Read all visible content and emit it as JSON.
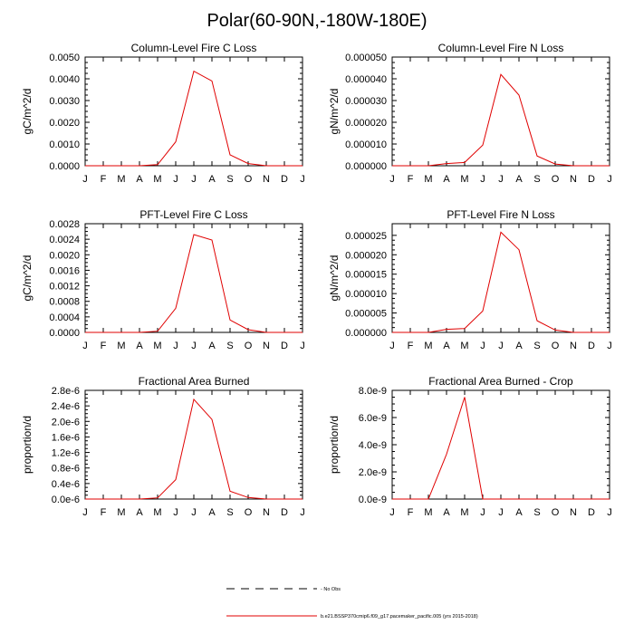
{
  "title": "Polar(60-90N,-180W-180E)",
  "line_color": "#e00000",
  "obs_color": "#000000",
  "legend": {
    "obs_label": "No Obs",
    "model_label": "b.e21.BSSP370cmip6.f09_g17.pacemaker_pacific.005 (yrs 2015-2018)"
  },
  "chart_data": [
    {
      "type": "line",
      "title": "Column-Level Fire C Loss",
      "ylabel": "gC/m^2/d",
      "categories": [
        "J",
        "F",
        "M",
        "A",
        "M",
        "J",
        "J",
        "A",
        "S",
        "O",
        "N",
        "D",
        "J"
      ],
      "ylim": [
        0,
        0.005
      ],
      "yticks": [
        "0.0000",
        "0.0010",
        "0.0020",
        "0.0030",
        "0.0040",
        "0.0050"
      ],
      "ytick_values": [
        0,
        0.001,
        0.002,
        0.003,
        0.004,
        0.005
      ],
      "series": [
        {
          "name": "model",
          "values": [
            0,
            0,
            0,
            0,
            5e-05,
            0.0011,
            0.00435,
            0.0039,
            0.0005,
            0.0001,
            0,
            0,
            0
          ]
        }
      ]
    },
    {
      "type": "line",
      "title": "Column-Level Fire N Loss",
      "ylabel": "gN/m^2/d",
      "categories": [
        "J",
        "F",
        "M",
        "A",
        "M",
        "J",
        "J",
        "A",
        "S",
        "O",
        "N",
        "D",
        "J"
      ],
      "ylim": [
        0,
        5e-05
      ],
      "yticks": [
        "0.000000",
        "0.000010",
        "0.000020",
        "0.000030",
        "0.000040",
        "0.000050"
      ],
      "ytick_values": [
        0,
        1e-05,
        2e-05,
        3e-05,
        4e-05,
        5e-05
      ],
      "series": [
        {
          "name": "model",
          "values": [
            0,
            0,
            0,
            1e-06,
            1.5e-06,
            9.5e-06,
            4.2e-05,
            3.25e-05,
            4.5e-06,
            8e-07,
            0,
            0,
            0
          ]
        }
      ]
    },
    {
      "type": "line",
      "title": "PFT-Level Fire C Loss",
      "ylabel": "gC/m^2/d",
      "categories": [
        "J",
        "F",
        "M",
        "A",
        "M",
        "J",
        "J",
        "A",
        "S",
        "O",
        "N",
        "D",
        "J"
      ],
      "ylim": [
        0,
        0.0028
      ],
      "yticks": [
        "0.0000",
        "0.0004",
        "0.0008",
        "0.0012",
        "0.0016",
        "0.0020",
        "0.0024",
        "0.0028"
      ],
      "ytick_values": [
        0,
        0.0004,
        0.0008,
        0.0012,
        0.0016,
        0.002,
        0.0024,
        0.0028
      ],
      "series": [
        {
          "name": "model",
          "values": [
            0,
            0,
            0,
            0,
            3e-05,
            0.00062,
            0.00252,
            0.00238,
            0.00032,
            7e-05,
            0,
            0,
            0
          ]
        }
      ]
    },
    {
      "type": "line",
      "title": "PFT-Level Fire N Loss",
      "ylabel": "gN/m^2/d",
      "categories": [
        "J",
        "F",
        "M",
        "A",
        "M",
        "J",
        "J",
        "A",
        "S",
        "O",
        "N",
        "D",
        "J"
      ],
      "ylim": [
        0,
        2.8e-05
      ],
      "yticks": [
        "0.000000",
        "0.000005",
        "0.000010",
        "0.000015",
        "0.000020",
        "0.000025"
      ],
      "ytick_values": [
        0,
        5e-06,
        1e-05,
        1.5e-05,
        2e-05,
        2.5e-05
      ],
      "series": [
        {
          "name": "model",
          "values": [
            0,
            0,
            0,
            8e-07,
            1e-06,
            5.5e-06,
            2.58e-05,
            2.13e-05,
            3e-06,
            6e-07,
            0,
            0,
            0
          ]
        }
      ]
    },
    {
      "type": "line",
      "title": "Fractional Area Burned",
      "ylabel": "proportion/d",
      "categories": [
        "J",
        "F",
        "M",
        "A",
        "M",
        "J",
        "J",
        "A",
        "S",
        "O",
        "N",
        "D",
        "J"
      ],
      "ylim": [
        0,
        2.8e-06
      ],
      "yticks": [
        "0.0e-6",
        "0.4e-6",
        "0.8e-6",
        "1.2e-6",
        "1.6e-6",
        "2.0e-6",
        "2.4e-6",
        "2.8e-6"
      ],
      "ytick_values": [
        0,
        4e-07,
        8e-07,
        1.2e-06,
        1.6e-06,
        2e-06,
        2.4e-06,
        2.8e-06
      ],
      "series": [
        {
          "name": "model",
          "values": [
            0,
            0,
            0,
            0,
            3e-08,
            5e-07,
            2.57e-06,
            2.05e-06,
            2e-07,
            4e-08,
            0,
            0,
            0
          ]
        }
      ]
    },
    {
      "type": "line",
      "title": "Fractional Area Burned - Crop",
      "ylabel": "proportion/d",
      "categories": [
        "J",
        "F",
        "M",
        "A",
        "M",
        "J",
        "J",
        "A",
        "S",
        "O",
        "N",
        "D",
        "J"
      ],
      "ylim": [
        0,
        8e-09
      ],
      "yticks": [
        "0.0e-9",
        "2.0e-9",
        "4.0e-9",
        "6.0e-9",
        "8.0e-9"
      ],
      "ytick_values": [
        0,
        2e-09,
        4e-09,
        6e-09,
        8e-09
      ],
      "series": [
        {
          "name": "model",
          "values": [
            0,
            0,
            0,
            3.3e-09,
            7.5e-09,
            0,
            0,
            0,
            0,
            0,
            0,
            0,
            0
          ]
        }
      ]
    }
  ]
}
